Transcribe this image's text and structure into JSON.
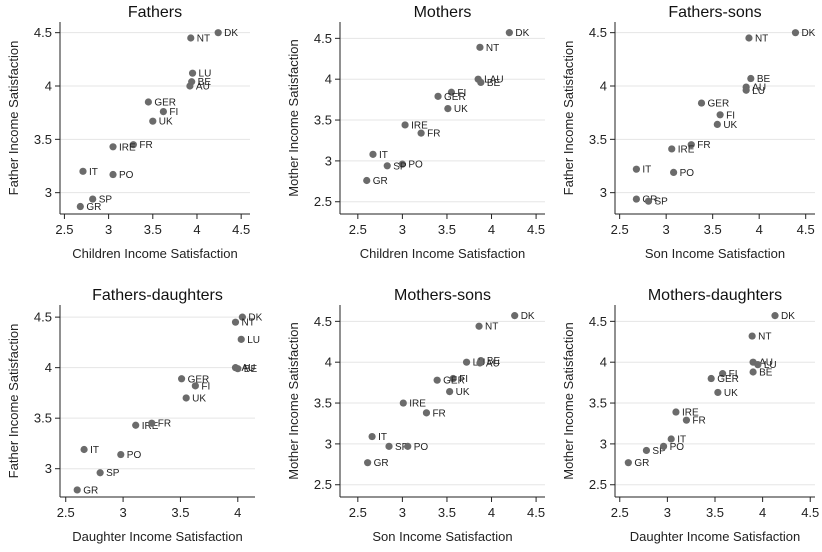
{
  "chart_data": [
    {
      "type": "scatter",
      "title": "Fathers",
      "xlabel": "Children Income Satisfaction",
      "ylabel": "Father Income Satisfaction",
      "xlim": [
        2.45,
        4.6
      ],
      "ylim": [
        2.8,
        4.6
      ],
      "xticks": [
        "2.5",
        "3",
        "3.5",
        "4",
        "4.5"
      ],
      "yticks": [
        "3",
        "3.5",
        "4",
        "4.5"
      ],
      "grid": true,
      "points": [
        {
          "label": "DK",
          "x": 4.24,
          "y": 4.5
        },
        {
          "label": "NT",
          "x": 3.93,
          "y": 4.45
        },
        {
          "label": "LU",
          "x": 3.95,
          "y": 4.12
        },
        {
          "label": "BE",
          "x": 3.94,
          "y": 4.04
        },
        {
          "label": "AU",
          "x": 3.92,
          "y": 4.0
        },
        {
          "label": "GER",
          "x": 3.45,
          "y": 3.85
        },
        {
          "label": "FI",
          "x": 3.62,
          "y": 3.76
        },
        {
          "label": "UK",
          "x": 3.5,
          "y": 3.67
        },
        {
          "label": "FR",
          "x": 3.28,
          "y": 3.45
        },
        {
          "label": "IRE",
          "x": 3.05,
          "y": 3.43
        },
        {
          "label": "IT",
          "x": 2.71,
          "y": 3.2
        },
        {
          "label": "PO",
          "x": 3.05,
          "y": 3.17
        },
        {
          "label": "SP",
          "x": 2.82,
          "y": 2.94
        },
        {
          "label": "GR",
          "x": 2.68,
          "y": 2.87
        }
      ]
    },
    {
      "type": "scatter",
      "title": "Mothers",
      "xlabel": "Children Income Satisfaction",
      "ylabel": "Mother Income Satisfaction",
      "xlim": [
        2.3,
        4.6
      ],
      "ylim": [
        2.35,
        4.7
      ],
      "xticks": [
        "2.5",
        "3",
        "3.5",
        "4",
        "4.5"
      ],
      "yticks": [
        "2.5",
        "3",
        "3.5",
        "4",
        "4.5"
      ],
      "grid": true,
      "points": [
        {
          "label": "DK",
          "x": 4.2,
          "y": 4.57
        },
        {
          "label": "NT",
          "x": 3.87,
          "y": 4.39
        },
        {
          "label": "LAU",
          "x": 3.85,
          "y": 4.0
        },
        {
          "label": "BE",
          "x": 3.88,
          "y": 3.96
        },
        {
          "label": "FI",
          "x": 3.55,
          "y": 3.84
        },
        {
          "label": "GER",
          "x": 3.4,
          "y": 3.79
        },
        {
          "label": "UK",
          "x": 3.51,
          "y": 3.64
        },
        {
          "label": "IRE",
          "x": 3.03,
          "y": 3.44
        },
        {
          "label": "FR",
          "x": 3.21,
          "y": 3.34
        },
        {
          "label": "IT",
          "x": 2.67,
          "y": 3.08
        },
        {
          "label": "PO",
          "x": 3.0,
          "y": 2.96
        },
        {
          "label": "SP",
          "x": 2.83,
          "y": 2.94
        },
        {
          "label": "GR",
          "x": 2.6,
          "y": 2.76
        }
      ]
    },
    {
      "type": "scatter",
      "title": "Fathers-sons",
      "xlabel": "Son Income Satisfaction",
      "ylabel": "Father Income Satisfaction",
      "xlim": [
        2.45,
        4.6
      ],
      "ylim": [
        2.8,
        4.6
      ],
      "xticks": [
        "2.5",
        "3",
        "3.5",
        "4",
        "4.5"
      ],
      "yticks": [
        "3",
        "3.5",
        "4",
        "4.5"
      ],
      "grid": true,
      "points": [
        {
          "label": "DK",
          "x": 4.39,
          "y": 4.5
        },
        {
          "label": "NT",
          "x": 3.89,
          "y": 4.45
        },
        {
          "label": "BE",
          "x": 3.91,
          "y": 4.07
        },
        {
          "label": "AU",
          "x": 3.86,
          "y": 3.99
        },
        {
          "label": "LU",
          "x": 3.86,
          "y": 3.96
        },
        {
          "label": "GER",
          "x": 3.38,
          "y": 3.84
        },
        {
          "label": "FI",
          "x": 3.58,
          "y": 3.73
        },
        {
          "label": "UK",
          "x": 3.55,
          "y": 3.64
        },
        {
          "label": "FR",
          "x": 3.27,
          "y": 3.45
        },
        {
          "label": "IRE",
          "x": 3.06,
          "y": 3.41
        },
        {
          "label": "IT",
          "x": 2.68,
          "y": 3.22
        },
        {
          "label": "PO",
          "x": 3.08,
          "y": 3.19
        },
        {
          "label": "GR",
          "x": 2.68,
          "y": 2.94
        },
        {
          "label": "SP",
          "x": 2.81,
          "y": 2.92
        }
      ]
    },
    {
      "type": "scatter",
      "title": "Fathers-daughters",
      "xlabel": "Daughter Income Satisfaction",
      "ylabel": "Father Income Satisfaction",
      "xlim": [
        2.45,
        4.15
      ],
      "ylim": [
        2.72,
        4.62
      ],
      "xticks": [
        "2.5",
        "3",
        "3.5",
        "4"
      ],
      "yticks": [
        "3",
        "3.5",
        "4",
        "4.5"
      ],
      "grid": true,
      "points": [
        {
          "label": "DK",
          "x": 4.04,
          "y": 4.5
        },
        {
          "label": "NT",
          "x": 3.98,
          "y": 4.45
        },
        {
          "label": "LU",
          "x": 4.03,
          "y": 4.28
        },
        {
          "label": "AU",
          "x": 3.98,
          "y": 4.0
        },
        {
          "label": "BE",
          "x": 4.0,
          "y": 3.99
        },
        {
          "label": "GER",
          "x": 3.51,
          "y": 3.89
        },
        {
          "label": "FI",
          "x": 3.63,
          "y": 3.82
        },
        {
          "label": "UK",
          "x": 3.55,
          "y": 3.7
        },
        {
          "label": "IRE",
          "x": 3.11,
          "y": 3.43
        },
        {
          "label": "FR",
          "x": 3.25,
          "y": 3.45
        },
        {
          "label": "IT",
          "x": 2.66,
          "y": 3.19
        },
        {
          "label": "PO",
          "x": 2.98,
          "y": 3.14
        },
        {
          "label": "SP",
          "x": 2.8,
          "y": 2.96
        },
        {
          "label": "GR",
          "x": 2.6,
          "y": 2.79
        }
      ]
    },
    {
      "type": "scatter",
      "title": "Mothers-sons",
      "xlabel": "Son Income Satisfaction",
      "ylabel": "Mother Income Satisfaction",
      "xlim": [
        2.3,
        4.6
      ],
      "ylim": [
        2.35,
        4.7
      ],
      "xticks": [
        "2.5",
        "3",
        "3.5",
        "4",
        "4.5"
      ],
      "yticks": [
        "2.5",
        "3",
        "3.5",
        "4",
        "4.5"
      ],
      "grid": true,
      "points": [
        {
          "label": "DK",
          "x": 4.26,
          "y": 4.57
        },
        {
          "label": "NT",
          "x": 3.86,
          "y": 4.44
        },
        {
          "label": "BE",
          "x": 3.88,
          "y": 4.02
        },
        {
          "label": "LU",
          "x": 3.72,
          "y": 4.0
        },
        {
          "label": "AU",
          "x": 3.87,
          "y": 3.99
        },
        {
          "label": "FI",
          "x": 3.57,
          "y": 3.8
        },
        {
          "label": "GER",
          "x": 3.39,
          "y": 3.78
        },
        {
          "label": "UK",
          "x": 3.53,
          "y": 3.64
        },
        {
          "label": "IRE",
          "x": 3.01,
          "y": 3.5
        },
        {
          "label": "FR",
          "x": 3.27,
          "y": 3.38
        },
        {
          "label": "IT",
          "x": 2.66,
          "y": 3.09
        },
        {
          "label": "SP",
          "x": 2.85,
          "y": 2.97
        },
        {
          "label": "PO",
          "x": 3.06,
          "y": 2.97
        },
        {
          "label": "GR",
          "x": 2.61,
          "y": 2.77
        }
      ]
    },
    {
      "type": "scatter",
      "title": "Mothers-daughters",
      "xlabel": "Daughter Income Satisfaction",
      "ylabel": "Mother Income Satisfaction",
      "xlim": [
        2.45,
        4.55
      ],
      "ylim": [
        2.35,
        4.7
      ],
      "xticks": [
        "2.5",
        "3",
        "3.5",
        "4",
        "4.5"
      ],
      "yticks": [
        "2.5",
        "3",
        "3.5",
        "4",
        "4.5"
      ],
      "grid": true,
      "points": [
        {
          "label": "DK",
          "x": 4.13,
          "y": 4.57
        },
        {
          "label": "NT",
          "x": 3.89,
          "y": 4.32
        },
        {
          "label": "AU",
          "x": 3.9,
          "y": 4.0
        },
        {
          "label": "LU",
          "x": 3.95,
          "y": 3.97
        },
        {
          "label": "BE",
          "x": 3.9,
          "y": 3.88
        },
        {
          "label": "FI",
          "x": 3.58,
          "y": 3.86
        },
        {
          "label": "GER",
          "x": 3.46,
          "y": 3.8
        },
        {
          "label": "UK",
          "x": 3.53,
          "y": 3.63
        },
        {
          "label": "IRE",
          "x": 3.09,
          "y": 3.39
        },
        {
          "label": "FR",
          "x": 3.2,
          "y": 3.29
        },
        {
          "label": "IT",
          "x": 3.04,
          "y": 3.06
        },
        {
          "label": "SP",
          "x": 2.78,
          "y": 2.92
        },
        {
          "label": "PO",
          "x": 2.96,
          "y": 2.97
        },
        {
          "label": "GR",
          "x": 2.59,
          "y": 2.77
        }
      ]
    }
  ],
  "colors": {
    "marker": "#6b6b6b",
    "grid": "#e5e5e5",
    "axis": "#222222"
  }
}
